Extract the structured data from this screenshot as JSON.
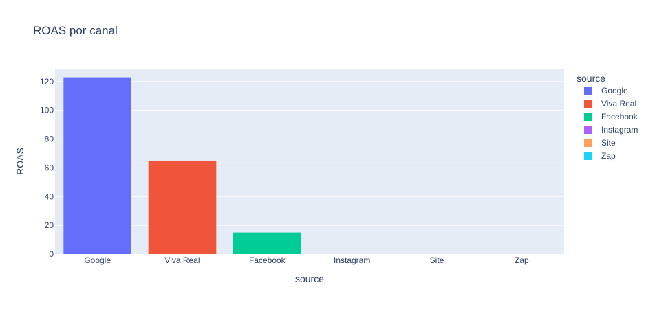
{
  "chart_data": {
    "type": "bar",
    "title": "ROAS por canal",
    "xlabel": "source",
    "ylabel": "ROAS",
    "categories": [
      "Google",
      "Viva Real",
      "Facebook",
      "Instagram",
      "Site",
      "Zap"
    ],
    "values": [
      123,
      65,
      15,
      0,
      0,
      0
    ],
    "colors": [
      "#636efa",
      "#ef553b",
      "#00cc96",
      "#ab63fa",
      "#ffa15a",
      "#19d3f3"
    ],
    "ylim": [
      0,
      129
    ],
    "yticks": [
      0,
      20,
      40,
      60,
      80,
      100,
      120
    ],
    "grid": true,
    "plot_background": "#e5ecf6",
    "legend": {
      "title": "source",
      "position": "right",
      "items": [
        "Google",
        "Viva Real",
        "Facebook",
        "Instagram",
        "Site",
        "Zap"
      ]
    }
  }
}
